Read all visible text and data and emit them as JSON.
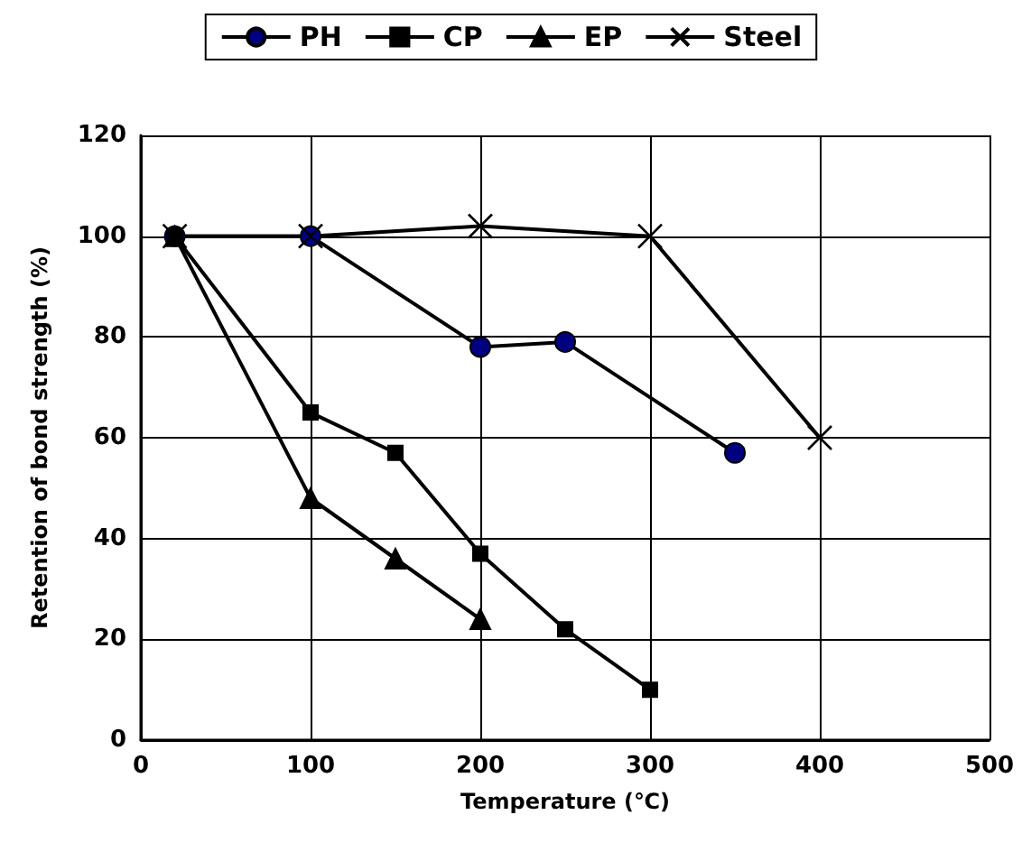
{
  "chart_data": {
    "type": "line",
    "xlabel": "Temperature (℃)",
    "ylabel": "Retention of bond strength (%)",
    "xlim": [
      0,
      500
    ],
    "xticks": [
      0,
      100,
      200,
      300,
      400,
      500
    ],
    "ylim": [
      0,
      120
    ],
    "yticks": [
      0,
      20,
      40,
      60,
      80,
      100,
      120
    ],
    "grid": true,
    "legend": "top",
    "series": [
      {
        "name": "PH",
        "color": "#000080",
        "marker": "circle",
        "x": [
          20,
          100,
          200,
          250,
          350
        ],
        "values": [
          100,
          100,
          78,
          79,
          57
        ]
      },
      {
        "name": "CP",
        "color": "#000000",
        "marker": "square",
        "x": [
          20,
          100,
          150,
          200,
          250,
          300
        ],
        "values": [
          100,
          65,
          57,
          37,
          22,
          10
        ]
      },
      {
        "name": "EP",
        "color": "#000000",
        "marker": "triangle",
        "x": [
          20,
          100,
          150,
          200
        ],
        "values": [
          100,
          48,
          36,
          24
        ]
      },
      {
        "name": "Steel",
        "color": "#000000",
        "marker": "cross",
        "x": [
          20,
          100,
          200,
          300,
          400
        ],
        "values": [
          100,
          100,
          102,
          100,
          60
        ]
      }
    ]
  }
}
